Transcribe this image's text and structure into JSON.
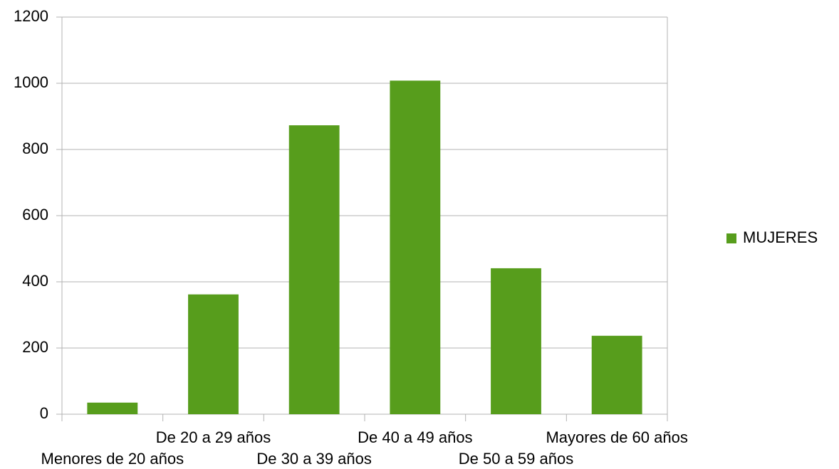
{
  "chart_data": {
    "type": "bar",
    "categories": [
      "Menores de 20 años",
      "De 20 a 29 años",
      "De 30 a 39 años",
      "De 40 a 49 años",
      "De 50 a 59 años",
      "Mayores de 60 años"
    ],
    "series": [
      {
        "name": "MUJERES",
        "color": "#579d1c",
        "values": [
          35,
          362,
          873,
          1008,
          441,
          237
        ]
      }
    ],
    "ylim": [
      0,
      1200
    ],
    "yticks": [
      0,
      200,
      400,
      600,
      800,
      1000,
      1200
    ],
    "grid": true,
    "legend": "right"
  }
}
